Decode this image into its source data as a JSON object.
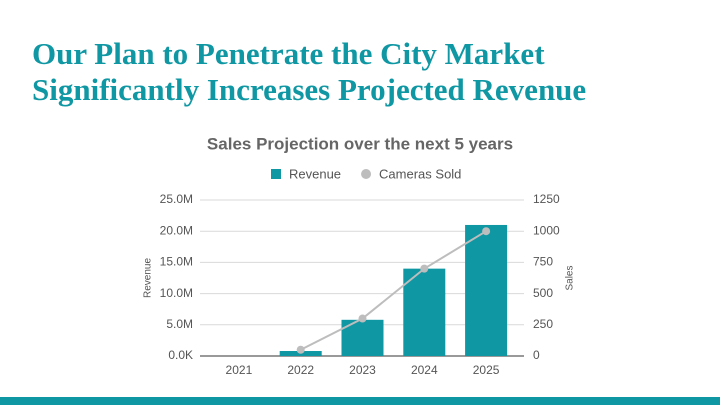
{
  "heading": "Our Plan to Penetrate the City Market Significantly Increases Projected Revenue",
  "chart_data": {
    "type": "bar",
    "title": "Sales Projection over the next 5 years",
    "categories": [
      "2021",
      "2022",
      "2023",
      "2024",
      "2025"
    ],
    "series": [
      {
        "name": "Revenue",
        "type": "bar",
        "color": "#0f97a3",
        "values": [
          0,
          800000,
          5800000,
          14000000,
          21000000
        ]
      },
      {
        "name": "Cameras Sold",
        "type": "line",
        "axis": "y2",
        "color": "#bdbdbd",
        "values": [
          null,
          50,
          300,
          700,
          1000
        ]
      }
    ],
    "ylabel": "Revenue",
    "y2label": "Sales",
    "ylim": [
      0,
      25000000
    ],
    "yticks": [
      {
        "value": 0,
        "label": "0.0K"
      },
      {
        "value": 5000000,
        "label": "5.0M"
      },
      {
        "value": 10000000,
        "label": "10.0M"
      },
      {
        "value": 15000000,
        "label": "15.0M"
      },
      {
        "value": 20000000,
        "label": "20.0M"
      },
      {
        "value": 25000000,
        "label": "25.0M"
      }
    ],
    "y2lim": [
      0,
      1250
    ],
    "y2ticks": [
      0,
      250,
      500,
      750,
      1000,
      1250
    ],
    "grid": true,
    "legend": "top"
  }
}
